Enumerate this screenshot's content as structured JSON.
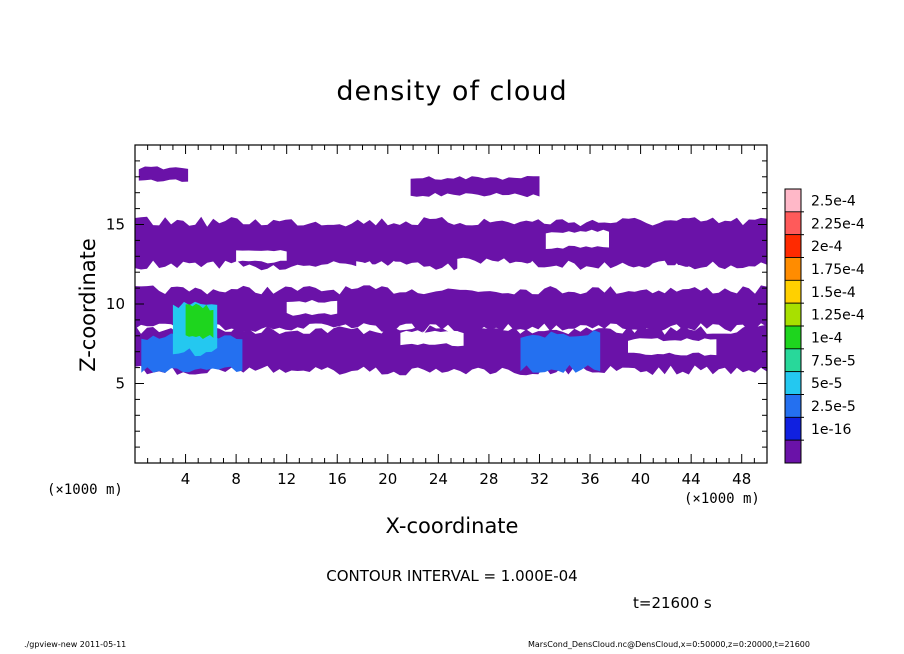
{
  "chart_data": {
    "type": "heatmap",
    "title": "density of cloud",
    "xlabel": "X-coordinate",
    "ylabel": "Z-coordinate",
    "x_unit_label": "(×1000 m)",
    "x_unit_label_right": "(×1000 m)",
    "xlim": [
      0,
      50
    ],
    "ylim": [
      0,
      20
    ],
    "x_ticks": [
      4,
      8,
      12,
      16,
      20,
      24,
      28,
      32,
      36,
      40,
      44,
      48
    ],
    "y_ticks": [
      5,
      10,
      15
    ],
    "colorbar": {
      "labels": [
        "2.5e-4",
        "2.25e-4",
        "2e-4",
        "1.75e-4",
        "1.5e-4",
        "1.25e-4",
        "1e-4",
        "7.5e-5",
        "5e-5",
        "2.5e-5",
        "1e-16"
      ],
      "colors": [
        "#ffb8c8",
        "#ff5a5a",
        "#ff2a00",
        "#ff8c00",
        "#ffd000",
        "#a8e000",
        "#1ed51e",
        "#28d89a",
        "#24c8f0",
        "#2470f0",
        "#1020e0",
        "#6a12a8"
      ]
    },
    "cloud_layers": [
      {
        "level": "1e-16",
        "color": "#6a12a8",
        "regions": [
          {
            "x": [
              0.0,
              50.0
            ],
            "z": [
              5.7,
              8.5
            ]
          },
          {
            "x": [
              0.0,
              50.0
            ],
            "z": [
              8.4,
              11.0
            ]
          },
          {
            "x": [
              0.0,
              50.0
            ],
            "z": [
              12.3,
              15.3
            ]
          },
          {
            "x": [
              0.3,
              4.2
            ],
            "z": [
              17.7,
              18.6
            ]
          },
          {
            "x": [
              21.8,
              32.0
            ],
            "z": [
              16.8,
              18.0
            ]
          }
        ]
      },
      {
        "level": "2.5e-5",
        "color": "#2470f0",
        "regions": [
          {
            "x": [
              0.5,
              8.5
            ],
            "z": [
              5.8,
              8.0
            ]
          },
          {
            "x": [
              30.5,
              36.8
            ],
            "z": [
              5.8,
              8.2
            ]
          }
        ]
      },
      {
        "level": "7.5e-5",
        "color": "#24c8f0",
        "regions": [
          {
            "x": [
              3.0,
              6.5
            ],
            "z": [
              6.8,
              10.0
            ]
          }
        ]
      },
      {
        "level": "1.25e-4",
        "color": "#1ed51e",
        "regions": [
          {
            "x": [
              4.0,
              6.2
            ],
            "z": [
              7.8,
              9.9
            ]
          }
        ]
      }
    ]
  },
  "contour_interval_label": "CONTOUR INTERVAL = 1.000E-04",
  "time_label": "t=21600 s",
  "footer_left": "./gpview-new   2011-05-11",
  "footer_right": "MarsCond_DensCloud.nc@DensCloud,x=0:50000,z=0:20000,t=21600"
}
